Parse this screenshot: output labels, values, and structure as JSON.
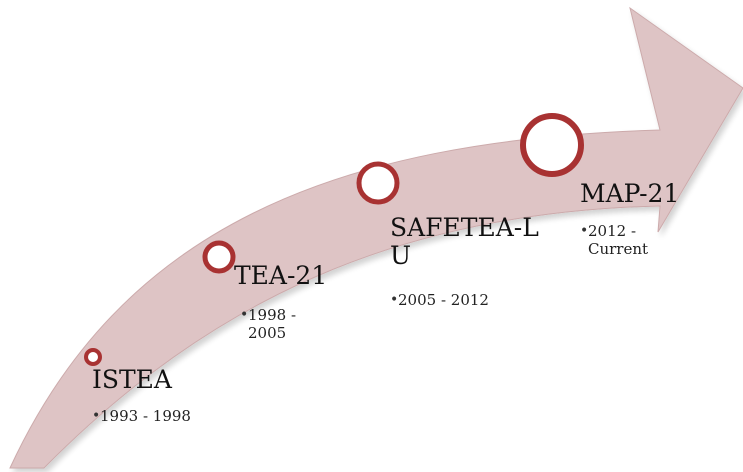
{
  "diagram": {
    "colors": {
      "arrow_fill": "#dec4c5",
      "arrow_edge": "#ccaaab",
      "circle_stroke": "#a83232",
      "circle_fill": "#ffffff"
    },
    "milestones": [
      {
        "name": "ISTEA",
        "period": "1993 - 1998"
      },
      {
        "name": "TEA-21",
        "period": "1998 - 2005"
      },
      {
        "name": "SAFETEA-LU",
        "period": "2005 - 2012"
      },
      {
        "name": "MAP-21",
        "period": "2012 - Current"
      }
    ]
  }
}
